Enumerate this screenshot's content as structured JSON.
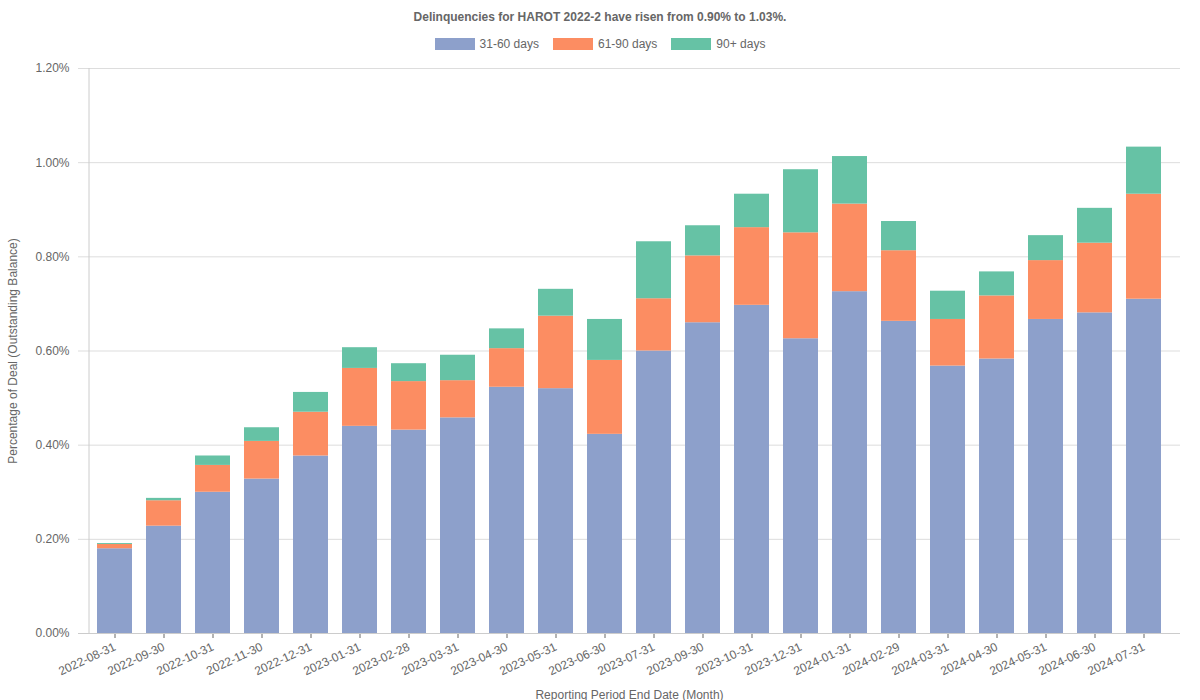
{
  "chart_data": {
    "type": "bar",
    "stacked": true,
    "grid": true,
    "legend": "top",
    "title": "Delinquencies for HAROT 2022-2 have risen from 0.90% to 1.03%.",
    "x_label": "Reporting Period End Date (Month)",
    "y_label": "Percentage of Deal (Outstanding Balance)",
    "categories": [
      "2022-08-31",
      "2022-09-30",
      "2022-10-31",
      "2022-11-30",
      "2022-12-31",
      "2023-01-31",
      "2023-02-28",
      "2023-03-31",
      "2023-04-30",
      "2023-05-31",
      "2023-06-30",
      "2023-07-31",
      "2023-09-30",
      "2023-10-31",
      "2023-12-31",
      "2024-01-31",
      "2024-02-29",
      "2024-03-31",
      "2024-04-30",
      "2024-05-31",
      "2024-06-30",
      "2024-07-31"
    ],
    "series": [
      {
        "name": "31-60 days",
        "color": "#8da0cb",
        "values": [
          0.18,
          0.228,
          0.3,
          0.328,
          0.377,
          0.44,
          0.432,
          0.458,
          0.523,
          0.52,
          0.423,
          0.6,
          0.66,
          0.697,
          0.626,
          0.726,
          0.663,
          0.568,
          0.583,
          0.667,
          0.681,
          0.71
        ]
      },
      {
        "name": "61-90 days",
        "color": "#fc8d62",
        "values": [
          0.009,
          0.054,
          0.057,
          0.08,
          0.093,
          0.123,
          0.103,
          0.079,
          0.082,
          0.154,
          0.157,
          0.111,
          0.142,
          0.165,
          0.225,
          0.186,
          0.15,
          0.099,
          0.134,
          0.125,
          0.148,
          0.223
        ]
      },
      {
        "name": "90+ days",
        "color": "#66c2a5",
        "values": [
          0.002,
          0.005,
          0.02,
          0.029,
          0.042,
          0.044,
          0.038,
          0.054,
          0.042,
          0.057,
          0.087,
          0.121,
          0.064,
          0.071,
          0.134,
          0.101,
          0.062,
          0.06,
          0.051,
          0.053,
          0.074,
          0.1
        ]
      }
    ],
    "ylim": [
      0,
      1.2
    ],
    "yticks": [
      {
        "value": 0,
        "label": "0.00%"
      },
      {
        "value": 0.2,
        "label": "0.20%"
      },
      {
        "value": 0.4,
        "label": "0.40%"
      },
      {
        "value": 0.6,
        "label": "0.60%"
      },
      {
        "value": 0.8,
        "label": "0.80%"
      },
      {
        "value": 1.0,
        "label": "1.00%"
      },
      {
        "value": 1.2,
        "label": "1.20%"
      }
    ]
  }
}
